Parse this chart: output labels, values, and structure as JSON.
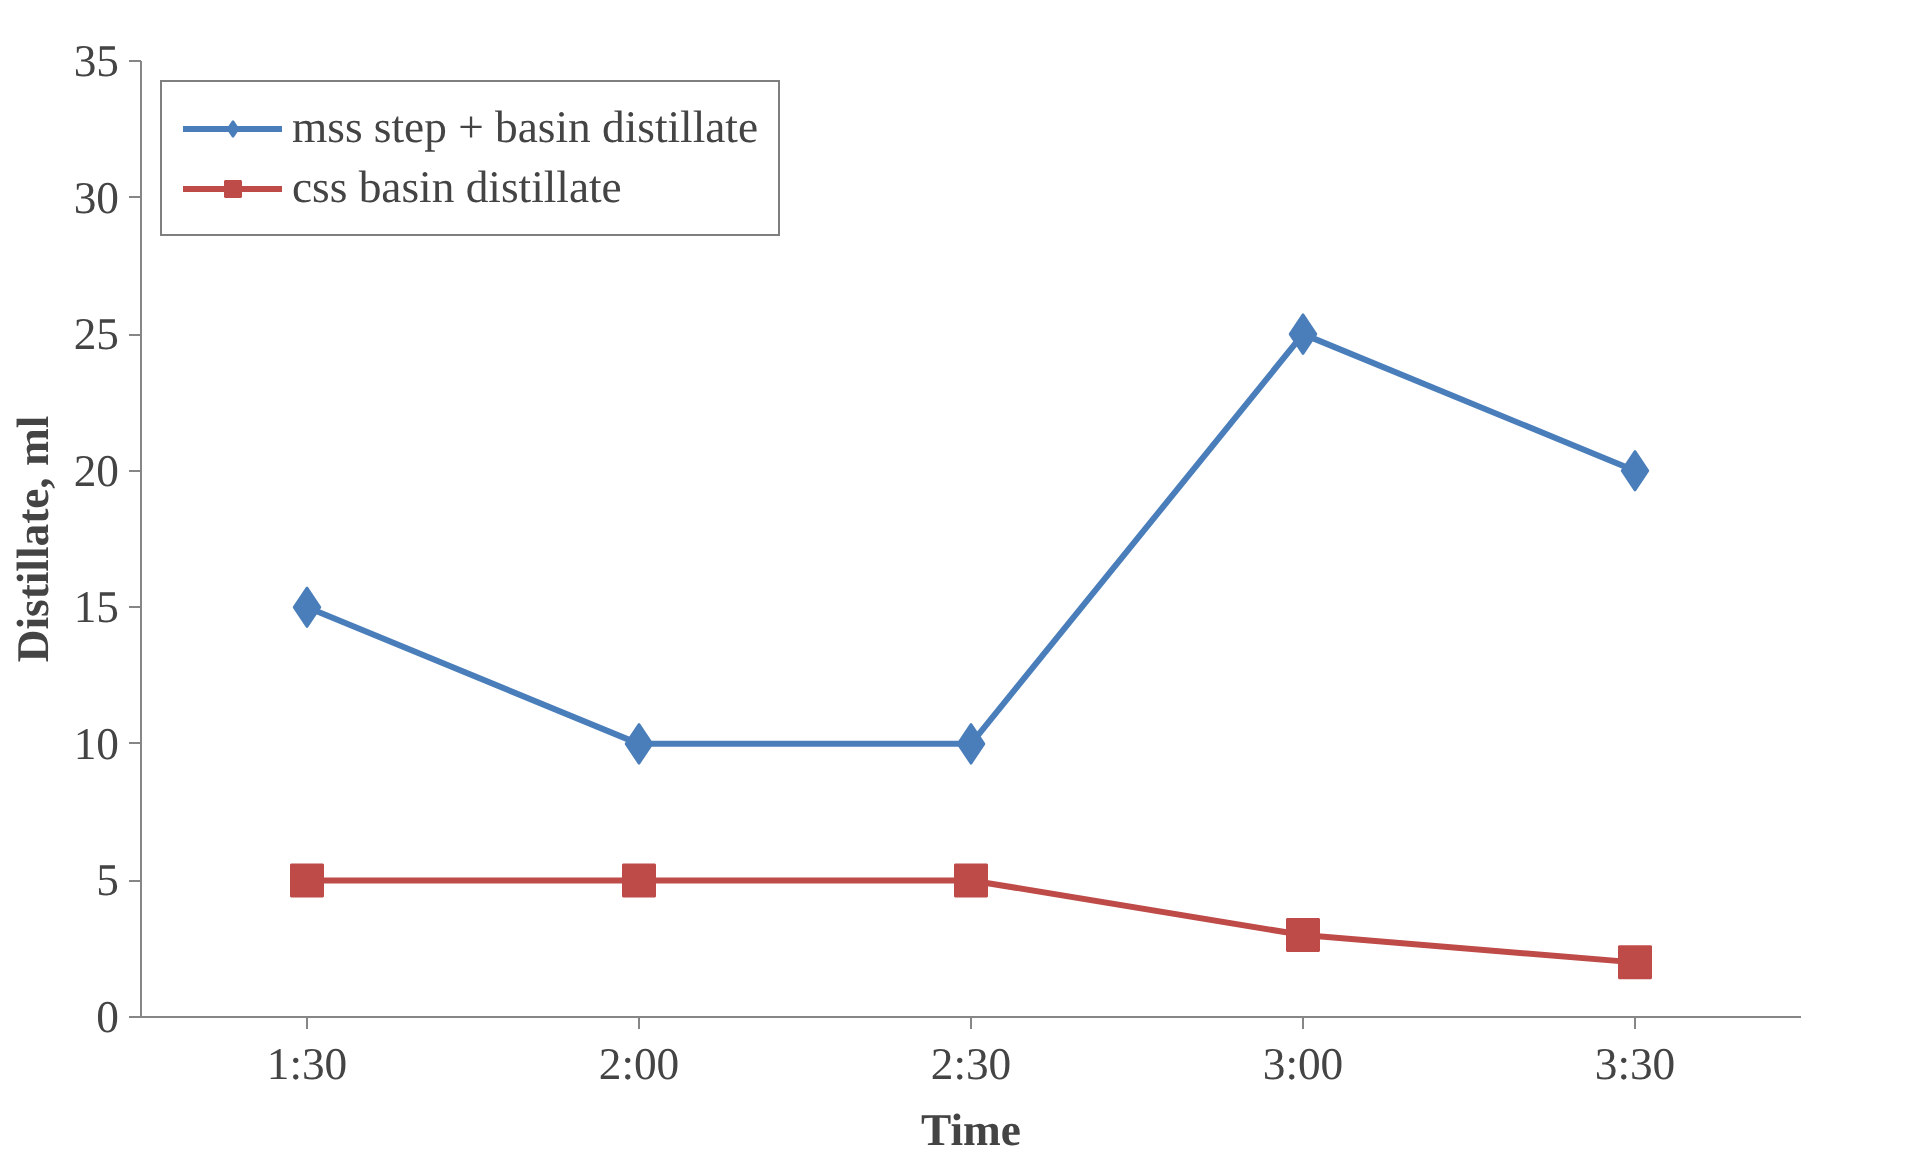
{
  "chart_data": {
    "type": "line",
    "xlabel": "Time",
    "ylabel": "Distillate, ml",
    "categories": [
      "1:30",
      "2:00",
      "2:30",
      "3:00",
      "3:30"
    ],
    "series": [
      {
        "name": "mss step + basin distillate",
        "color": "#4a7ebb",
        "marker": "diamond",
        "values": [
          15,
          10,
          10,
          25,
          20
        ]
      },
      {
        "name": "css basin distillate",
        "color": "#be4b48",
        "marker": "square",
        "values": [
          5,
          5,
          5,
          3,
          2
        ]
      }
    ],
    "ylim": [
      0,
      35
    ],
    "yticks": [
      0,
      5,
      10,
      15,
      20,
      25,
      30,
      35
    ],
    "grid": false,
    "legend": "top left",
    "line_style": "solid"
  }
}
